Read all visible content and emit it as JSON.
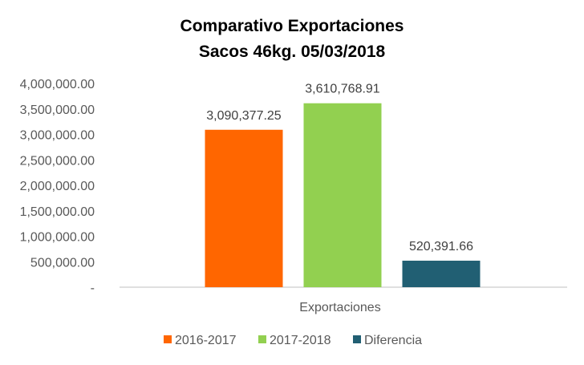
{
  "chart_data": {
    "type": "bar",
    "title": "Comparativo Exportaciones",
    "subtitle": "Sacos 46kg. 05/03/2018",
    "categories": [
      "Exportaciones"
    ],
    "series": [
      {
        "name": "2016-2017",
        "values": [
          3090377.25
        ],
        "label": "3,090,377.25",
        "color": "#FF6600"
      },
      {
        "name": "2017-2018",
        "values": [
          3610768.91
        ],
        "label": "3,610,768.91",
        "color": "#92D050"
      },
      {
        "name": "Diferencia",
        "values": [
          520391.66
        ],
        "label": "520,391.66",
        "color": "#215F73"
      }
    ],
    "ylim": [
      0,
      4000000
    ],
    "yticks": [
      {
        "value": 0,
        "label": "-"
      },
      {
        "value": 500000,
        "label": "500,000.00"
      },
      {
        "value": 1000000,
        "label": "1,000,000.00"
      },
      {
        "value": 1500000,
        "label": "1,500,000.00"
      },
      {
        "value": 2000000,
        "label": "2,000,000.00"
      },
      {
        "value": 2500000,
        "label": "2,500,000.00"
      },
      {
        "value": 3000000,
        "label": "3,000,000.00"
      },
      {
        "value": 3500000,
        "label": "3,500,000.00"
      },
      {
        "value": 4000000,
        "label": "4,000,000.00"
      }
    ],
    "grid": false,
    "legend_position": "bottom"
  }
}
